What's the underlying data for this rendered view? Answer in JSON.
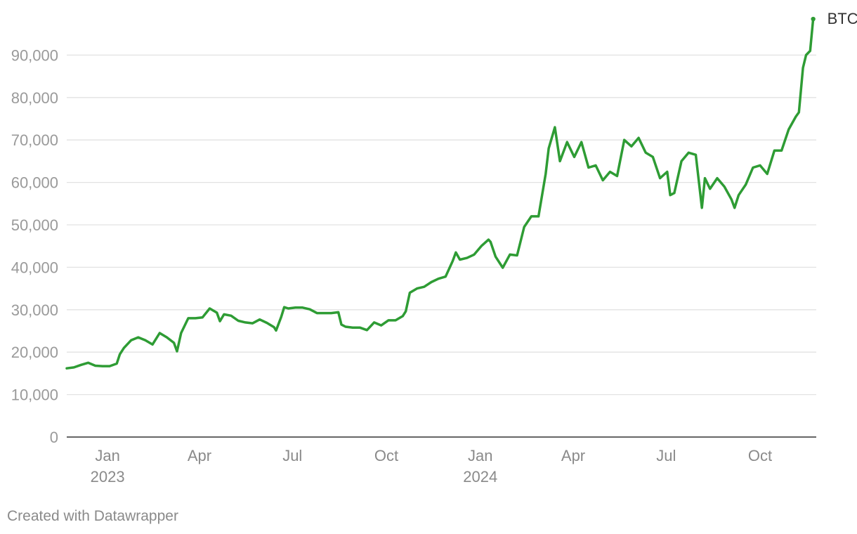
{
  "chart_data": {
    "type": "line",
    "title": "",
    "xlabel": "",
    "ylabel": "",
    "ylim": [
      0,
      100000
    ],
    "xlim": [
      "2022-11-22",
      "2024-11-25"
    ],
    "y_ticks": [
      0,
      10000,
      20000,
      30000,
      40000,
      50000,
      60000,
      70000,
      80000,
      90000
    ],
    "y_tick_labels": [
      "0",
      "10,000",
      "20,000",
      "30,000",
      "40,000",
      "50,000",
      "60,000",
      "70,000",
      "80,000",
      "90,000"
    ],
    "x_ticks": [
      {
        "date": "2023-01-01",
        "label": "Jan",
        "sublabel": "2023"
      },
      {
        "date": "2023-04-01",
        "label": "Apr",
        "sublabel": ""
      },
      {
        "date": "2023-07-01",
        "label": "Jul",
        "sublabel": ""
      },
      {
        "date": "2023-10-01",
        "label": "Oct",
        "sublabel": ""
      },
      {
        "date": "2024-01-01",
        "label": "Jan",
        "sublabel": "2024"
      },
      {
        "date": "2024-04-01",
        "label": "Apr",
        "sublabel": ""
      },
      {
        "date": "2024-07-01",
        "label": "Jul",
        "sublabel": ""
      },
      {
        "date": "2024-10-01",
        "label": "Oct",
        "sublabel": ""
      }
    ],
    "grid": true,
    "series": [
      {
        "name": "BTC",
        "color": "#2e9c34",
        "x": [
          "2022-11-22",
          "2022-11-29",
          "2022-12-06",
          "2022-12-13",
          "2022-12-20",
          "2022-12-27",
          "2023-01-03",
          "2023-01-10",
          "2023-01-13",
          "2023-01-17",
          "2023-01-24",
          "2023-01-31",
          "2023-02-07",
          "2023-02-14",
          "2023-02-21",
          "2023-02-28",
          "2023-03-07",
          "2023-03-10",
          "2023-03-14",
          "2023-03-21",
          "2023-03-28",
          "2023-04-04",
          "2023-04-11",
          "2023-04-18",
          "2023-04-21",
          "2023-04-25",
          "2023-05-02",
          "2023-05-09",
          "2023-05-16",
          "2023-05-23",
          "2023-05-30",
          "2023-06-06",
          "2023-06-13",
          "2023-06-15",
          "2023-06-20",
          "2023-06-23",
          "2023-06-27",
          "2023-07-04",
          "2023-07-11",
          "2023-07-18",
          "2023-07-25",
          "2023-08-01",
          "2023-08-08",
          "2023-08-15",
          "2023-08-18",
          "2023-08-22",
          "2023-08-29",
          "2023-09-05",
          "2023-09-12",
          "2023-09-19",
          "2023-09-26",
          "2023-10-03",
          "2023-10-10",
          "2023-10-17",
          "2023-10-20",
          "2023-10-24",
          "2023-10-31",
          "2023-11-07",
          "2023-11-14",
          "2023-11-21",
          "2023-11-28",
          "2023-12-05",
          "2023-12-08",
          "2023-12-12",
          "2023-12-19",
          "2023-12-26",
          "2024-01-02",
          "2024-01-09",
          "2024-01-11",
          "2024-01-16",
          "2024-01-23",
          "2024-01-30",
          "2024-02-06",
          "2024-02-13",
          "2024-02-20",
          "2024-02-27",
          "2024-03-05",
          "2024-03-08",
          "2024-03-14",
          "2024-03-19",
          "2024-03-26",
          "2024-04-02",
          "2024-04-09",
          "2024-04-16",
          "2024-04-23",
          "2024-04-30",
          "2024-05-07",
          "2024-05-14",
          "2024-05-21",
          "2024-05-28",
          "2024-06-04",
          "2024-06-11",
          "2024-06-18",
          "2024-06-25",
          "2024-07-02",
          "2024-07-05",
          "2024-07-09",
          "2024-07-16",
          "2024-07-23",
          "2024-07-30",
          "2024-08-05",
          "2024-08-08",
          "2024-08-13",
          "2024-08-20",
          "2024-08-27",
          "2024-09-03",
          "2024-09-06",
          "2024-09-10",
          "2024-09-17",
          "2024-09-24",
          "2024-10-01",
          "2024-10-08",
          "2024-10-15",
          "2024-10-22",
          "2024-10-29",
          "2024-11-05",
          "2024-11-08",
          "2024-11-12",
          "2024-11-15",
          "2024-11-19",
          "2024-11-22"
        ],
        "y": [
          16200,
          16400,
          17000,
          17500,
          16800,
          16700,
          16700,
          17300,
          19500,
          21000,
          22800,
          23500,
          22800,
          21800,
          24500,
          23500,
          22200,
          20200,
          24500,
          28000,
          28000,
          28200,
          30300,
          29300,
          27300,
          28900,
          28600,
          27400,
          27000,
          26800,
          27700,
          26900,
          25900,
          25100,
          28300,
          30600,
          30300,
          30500,
          30500,
          30100,
          29200,
          29200,
          29200,
          29400,
          26500,
          26000,
          25800,
          25800,
          25200,
          27000,
          26300,
          27500,
          27500,
          28500,
          29600,
          34000,
          35000,
          35400,
          36500,
          37300,
          37800,
          41500,
          43500,
          41800,
          42200,
          43000,
          45000,
          46500,
          46000,
          42500,
          39900,
          43000,
          42800,
          49500,
          52000,
          52000,
          62000,
          68000,
          73000,
          65000,
          69500,
          66000,
          69500,
          63500,
          64000,
          60500,
          62500,
          61500,
          70000,
          68500,
          70500,
          67000,
          66000,
          61000,
          62500,
          57000,
          57500,
          65000,
          67000,
          66500,
          54000,
          61000,
          58500,
          61000,
          59000,
          56000,
          54000,
          57000,
          59500,
          63500,
          64000,
          62000,
          67500,
          67500,
          72500,
          75500,
          76500,
          87000,
          90000,
          91000,
          98500
        ]
      }
    ]
  },
  "series_end_label": "BTC",
  "credit": "Created with Datawrapper"
}
